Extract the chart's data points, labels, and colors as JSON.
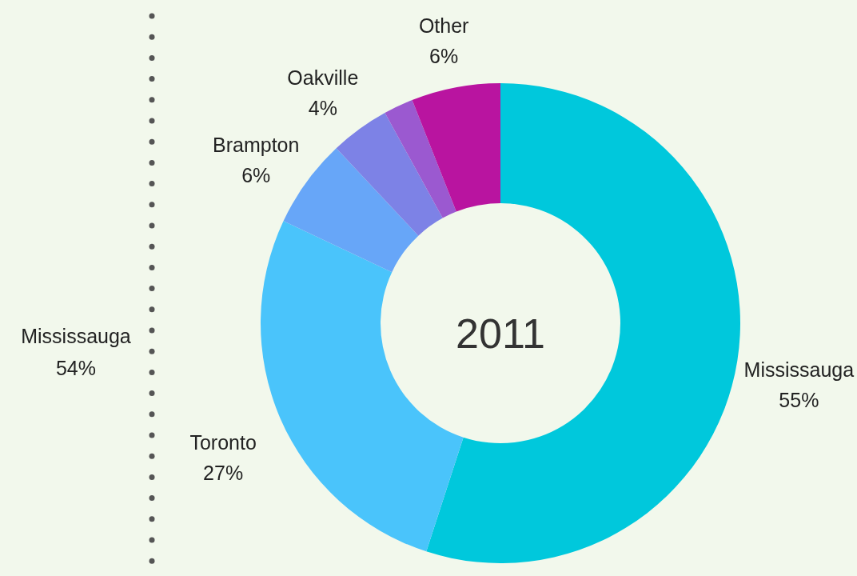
{
  "chart_data": [
    {
      "type": "other",
      "annotations": [
        "Mississauga",
        "54%"
      ]
    },
    {
      "type": "donut",
      "title": "2011",
      "categories": [
        "Mississauga",
        "Toronto",
        "Brampton",
        "Oakville",
        null,
        "Other"
      ],
      "values": [
        55,
        27,
        6,
        4,
        2,
        6
      ],
      "colors": [
        "#00c8dc",
        "#4ac4fb",
        "#67a6f8",
        "#7d82e6",
        "#9b59d0",
        "#b914a0"
      ],
      "value_labels": [
        "55%",
        "27%",
        "6%",
        "4%",
        null,
        "6%"
      ]
    }
  ]
}
